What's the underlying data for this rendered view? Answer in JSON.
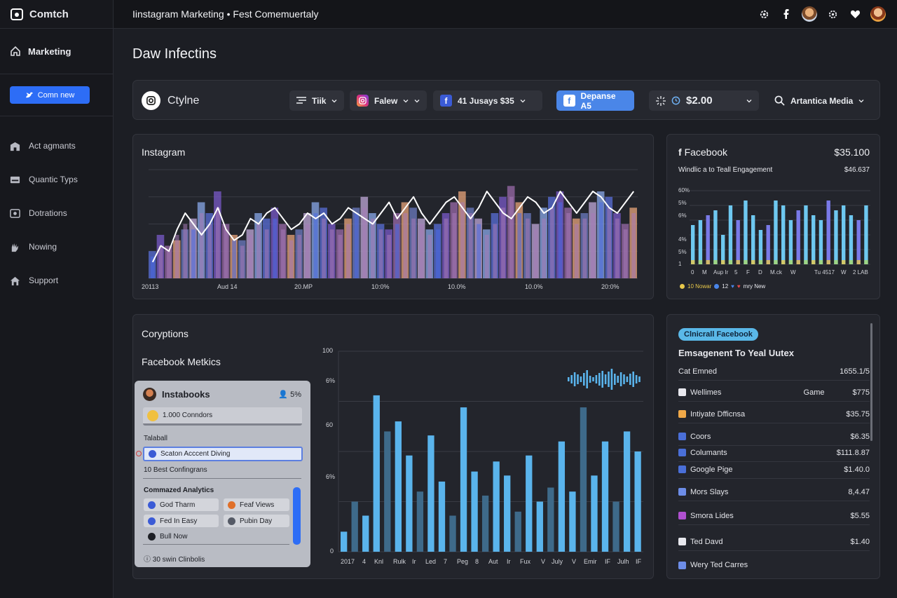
{
  "sidebar": {
    "brand": "Comtch",
    "top_item": "Marketing",
    "button_label": "Comn new",
    "items": [
      {
        "label": "Act agmants",
        "icon": "building-icon"
      },
      {
        "label": "Quantic Typs",
        "icon": "card-icon"
      },
      {
        "label": "Dotrations",
        "icon": "camera-icon"
      },
      {
        "label": "Nowing",
        "icon": "hand-icon"
      },
      {
        "label": "Support",
        "icon": "home-icon"
      }
    ]
  },
  "header": {
    "title": "Iinstagram Marketing • Fest Comemuertaly"
  },
  "page": {
    "title": "Daw Infectins"
  },
  "filters": {
    "brand": "Ctylne",
    "tik": "Tiik",
    "falew": "Falew",
    "jusays": "41 Jusays $35",
    "depanse": "Depanse A5",
    "amount": "$2.00",
    "media": "Artantica Media"
  },
  "instagram_panel": {
    "title": "Instagram",
    "x_labels": [
      "20113",
      "Aud 14",
      "20.MP",
      "10:0%",
      "10.0%",
      "10.0%",
      "20:0%"
    ]
  },
  "facebook_panel": {
    "title": "Facebook",
    "value": "$35.100",
    "subtitle": "Windlic a to Teall Engagement",
    "sub_value": "$46.637",
    "y_labels": [
      "60%",
      "5%",
      "6%",
      "4%",
      "5%",
      "1"
    ],
    "x_labels": [
      "0",
      "M",
      "Aup Ir",
      "5",
      "F",
      "D",
      "M.ck",
      "W",
      "Tu 45",
      "17",
      "W",
      "2 LAB"
    ],
    "legend": {
      "a": "10 Nowar",
      "b": "12",
      "c": "mry New"
    }
  },
  "corp_panel": {
    "title": "Coryptions",
    "subtitle": "Facebook Metkics",
    "y_labels": [
      "100",
      "6%",
      "60",
      "6%",
      "0"
    ],
    "x_labels": [
      "2017",
      "4",
      "Knl",
      "Rulk",
      "Ir",
      "Led",
      "7",
      "Peg",
      "8",
      "Aut",
      "Ir",
      "Fux",
      "V",
      "July",
      "V",
      "Emir",
      "IF",
      "Julh",
      "IF"
    ]
  },
  "card": {
    "title": "Instabooks",
    "badge": "5%",
    "input_value": "1.000 Conndors",
    "section1": "Talaball",
    "selected": "Scaton Acccent Diving",
    "best": "10 Best Confingrans",
    "section2": "Commazed Analytics",
    "chips": [
      "God Tharm",
      "Feaf Views",
      "Fed In Easy",
      "Pubin Day",
      "Bull Now"
    ],
    "footer": "30 swin Clinbolis"
  },
  "right_list": {
    "badge": "Clnicrall Facebook",
    "title": "Emsagenent To Yeal Uutex",
    "header_label": "Cat Emned",
    "header_value": "1655.1/5",
    "rows": [
      {
        "label": "Wellimes",
        "mid": "Game",
        "value": "$775",
        "color": "#e8e8ee"
      },
      {
        "label": "Intiyate Dfficnsa",
        "mid": "",
        "value": "$35.75",
        "color": "#f0a848"
      },
      {
        "label": "Coors",
        "mid": "",
        "value": "$6.35",
        "color": "#4a6fd8"
      },
      {
        "label": "Columants",
        "mid": "",
        "value": "$111.8.87",
        "color": "#4a6fd8"
      },
      {
        "label": "Google Pige",
        "mid": "",
        "value": "$1.40.0",
        "color": "#4a6fd8"
      },
      {
        "label": "Mors Slays",
        "mid": "",
        "value": "8,4.47",
        "color": "#6d8de8"
      },
      {
        "label": "Smora Lides",
        "mid": "",
        "value": "$5.55",
        "color": "#b050d0"
      },
      {
        "label": "Ted Davd",
        "mid": "",
        "value": "$1.40",
        "color": "#e8e8ee"
      },
      {
        "label": "Wery Ted Carres",
        "mid": "",
        "value": "",
        "color": "#6d8de8"
      }
    ]
  },
  "chart_data": [
    {
      "type": "bar",
      "title": "Instagram",
      "series": [
        {
          "name": "",
          "values": [
            5,
            8,
            6,
            7,
            9,
            11,
            14,
            12,
            16,
            10,
            8,
            7,
            9,
            12,
            11,
            13,
            10,
            8,
            9,
            12,
            14,
            13,
            10,
            9,
            11,
            13,
            15,
            12,
            10,
            9,
            12,
            14,
            13,
            11,
            9,
            10,
            12,
            14,
            16,
            13,
            11,
            9,
            12,
            15,
            17,
            14,
            12,
            10,
            13,
            15,
            16,
            13,
            11,
            12,
            14,
            16,
            15,
            12,
            10,
            13
          ]
        },
        {
          "name": "",
          "values": [
            4,
            6,
            5,
            8,
            10,
            9,
            12,
            10,
            13,
            9,
            7,
            6,
            8,
            10,
            9,
            11,
            9,
            7,
            8,
            10,
            12,
            11,
            9,
            8,
            10,
            12,
            13,
            11,
            9,
            8,
            10,
            12,
            11,
            10,
            8,
            9,
            11,
            12,
            14,
            12,
            10,
            8,
            10,
            13,
            15,
            12,
            11,
            9,
            11,
            13,
            14,
            12,
            10,
            11,
            12,
            14,
            13,
            11,
            9,
            12
          ]
        }
      ],
      "line": [
        3,
        6,
        5,
        9,
        12,
        10,
        8,
        10,
        13,
        9,
        7,
        8,
        11,
        10,
        12,
        13,
        11,
        9,
        10,
        12,
        11,
        12,
        10,
        11,
        13,
        12,
        11,
        10,
        12,
        14,
        11,
        13,
        15,
        12,
        10,
        12,
        14,
        15,
        13,
        11,
        13,
        16,
        14,
        12,
        11,
        13,
        15,
        14,
        12,
        13,
        16,
        14,
        12,
        14,
        16,
        15,
        13,
        12,
        14,
        16
      ],
      "ylim": [
        0,
        20
      ]
    },
    {
      "type": "bar",
      "title": "Facebook",
      "values": [
        8,
        9,
        10,
        11,
        6,
        12,
        9,
        13,
        10,
        7,
        8,
        13,
        12,
        9,
        11,
        12,
        10,
        9,
        13,
        11,
        12,
        10,
        9,
        12
      ],
      "ylim": [
        0,
        15
      ]
    },
    {
      "type": "bar",
      "title": "Coryptions",
      "values": [
        10,
        25,
        18,
        78,
        60,
        65,
        48,
        30,
        58,
        35,
        18,
        72,
        40,
        28,
        45,
        38,
        20,
        48,
        25,
        32,
        55,
        30,
        72,
        38,
        55,
        25,
        60,
        50
      ],
      "ylim": [
        0,
        100
      ]
    }
  ]
}
